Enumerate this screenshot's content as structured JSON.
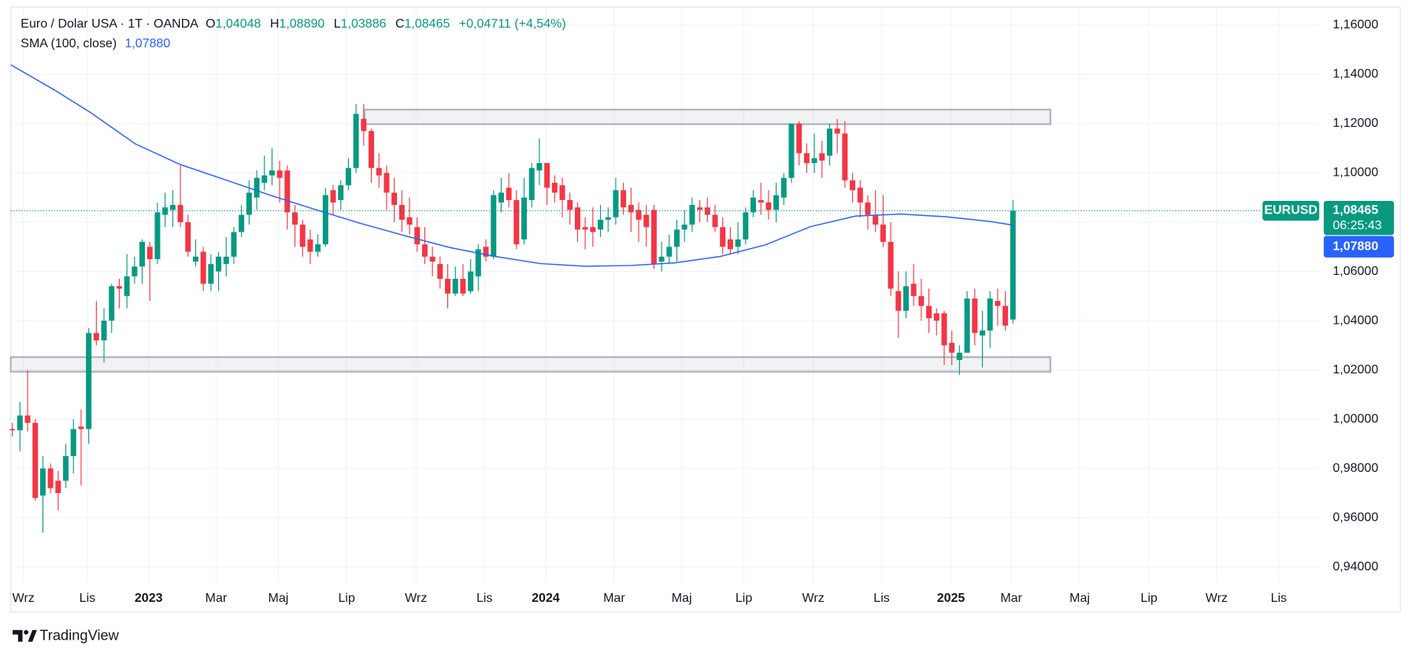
{
  "chart_data": {
    "type": "candlestick",
    "legend": {
      "symbol": "Euro / Dolar USA · 1T · OANDA",
      "ohlc": [
        {
          "key": "O",
          "label": "1,04048"
        },
        {
          "key": "H",
          "label": "1,08890"
        },
        {
          "key": "L",
          "label": "1,03886"
        },
        {
          "key": "C",
          "label": "1,08465"
        }
      ],
      "change": "+0,04711 (+4,54%)"
    },
    "up_color": "#089981",
    "down_color": "#f23645",
    "open": [
      0.996,
      0.9955,
      1.0015,
      0.9985,
      0.969,
      0.98,
      0.975,
      0.975,
      0.985,
      0.997,
      0.996,
      1.035,
      1.032,
      1.04,
      1.054,
      1.05,
      1.058,
      1.062,
      1.07,
      1.065,
      1.083,
      1.085,
      1.087,
      1.08,
      1.064,
      1.068,
      1.055,
      1.06,
      1.063,
      1.066,
      1.076,
      1.083,
      1.09,
      1.096,
      1.099,
      1.101,
      1.101,
      1.084,
      1.079,
      1.073,
      1.068,
      1.071,
      1.093,
      1.089,
      1.095,
      1.102,
      1.122,
      1.117,
      1.102,
      1.1,
      1.092,
      1.087,
      1.082,
      1.078,
      1.071,
      1.066,
      1.063,
      1.057,
      1.051,
      1.057,
      1.052,
      1.058,
      1.07,
      1.066,
      1.088,
      1.094,
      1.089,
      1.073,
      1.089,
      1.101,
      1.104,
      1.096,
      1.095,
      1.089,
      1.086,
      1.078,
      1.078,
      1.077,
      1.081,
      1.082,
      1.093,
      1.087,
      1.085,
      1.083,
      1.085,
      1.064,
      1.066,
      1.07,
      1.077,
      1.079,
      1.086,
      1.086,
      1.083,
      1.078,
      1.073,
      1.07,
      1.073,
      1.084,
      1.089,
      1.088,
      1.085,
      1.09,
      1.098,
      1.12,
      1.108,
      1.104,
      1.108,
      1.107,
      1.118,
      1.116,
      1.097,
      1.094,
      1.088,
      1.083,
      1.079,
      1.072,
      1.052,
      1.044,
      1.055,
      1.05,
      1.046,
      1.043,
      1.043,
      1.031,
      1.024,
      1.027,
      1.049,
      1.034,
      1.036,
      1.048,
      1.046,
      1.04048
    ],
    "high": [
      0.9985,
      1.007,
      1.02,
      1.0,
      0.985,
      0.982,
      0.979,
      0.99,
      1.0,
      1.004,
      1.037,
      1.048,
      1.045,
      1.055,
      1.057,
      1.067,
      1.066,
      1.073,
      1.072,
      1.088,
      1.092,
      1.093,
      1.103,
      1.083,
      1.073,
      1.07,
      1.067,
      1.068,
      1.074,
      1.078,
      1.087,
      1.097,
      1.101,
      1.107,
      1.11,
      1.105,
      1.103,
      1.087,
      1.081,
      1.077,
      1.075,
      1.094,
      1.095,
      1.097,
      1.106,
      1.128,
      1.128,
      1.118,
      1.108,
      1.103,
      1.098,
      1.093,
      1.09,
      1.082,
      1.078,
      1.07,
      1.066,
      1.063,
      1.062,
      1.063,
      1.065,
      1.071,
      1.073,
      1.093,
      1.098,
      1.1,
      1.093,
      1.098,
      1.104,
      1.114,
      1.104,
      1.099,
      1.098,
      1.092,
      1.088,
      1.082,
      1.086,
      1.087,
      1.086,
      1.098,
      1.096,
      1.094,
      1.088,
      1.087,
      1.087,
      1.072,
      1.075,
      1.081,
      1.085,
      1.09,
      1.089,
      1.09,
      1.087,
      1.082,
      1.078,
      1.08,
      1.086,
      1.093,
      1.096,
      1.093,
      1.096,
      1.1,
      1.12,
      1.121,
      1.112,
      1.116,
      1.113,
      1.12,
      1.122,
      1.121,
      1.1,
      1.097,
      1.091,
      1.093,
      1.091,
      1.08,
      1.06,
      1.06,
      1.063,
      1.057,
      1.053,
      1.045,
      1.044,
      1.036,
      1.03,
      1.052,
      1.053,
      1.044,
      1.052,
      1.053,
      1.052,
      1.0889
    ],
    "low": [
      0.993,
      0.987,
      0.995,
      0.967,
      0.954,
      0.97,
      0.963,
      0.972,
      0.978,
      0.973,
      0.99,
      1.03,
      1.023,
      1.035,
      1.045,
      1.045,
      1.055,
      1.055,
      1.048,
      1.063,
      1.078,
      1.078,
      1.078,
      1.066,
      1.062,
      1.052,
      1.052,
      1.052,
      1.058,
      1.063,
      1.074,
      1.079,
      1.085,
      1.093,
      1.095,
      1.088,
      1.077,
      1.07,
      1.066,
      1.063,
      1.066,
      1.07,
      1.083,
      1.085,
      1.093,
      1.1,
      1.111,
      1.096,
      1.094,
      1.085,
      1.08,
      1.076,
      1.075,
      1.068,
      1.063,
      1.058,
      1.053,
      1.045,
      1.05,
      1.05,
      1.051,
      1.052,
      1.064,
      1.065,
      1.084,
      1.086,
      1.069,
      1.071,
      1.086,
      1.095,
      1.087,
      1.088,
      1.082,
      1.079,
      1.072,
      1.069,
      1.07,
      1.074,
      1.076,
      1.079,
      1.083,
      1.076,
      1.072,
      1.07,
      1.061,
      1.06,
      1.063,
      1.064,
      1.072,
      1.076,
      1.08,
      1.08,
      1.076,
      1.067,
      1.067,
      1.067,
      1.071,
      1.082,
      1.083,
      1.081,
      1.08,
      1.087,
      1.096,
      1.103,
      1.1,
      1.1,
      1.098,
      1.103,
      1.108,
      1.094,
      1.088,
      1.082,
      1.077,
      1.076,
      1.07,
      1.05,
      1.033,
      1.041,
      1.046,
      1.04,
      1.035,
      1.034,
      1.022,
      1.022,
      1.018,
      1.027,
      1.03,
      1.021,
      1.029,
      1.038,
      1.036,
      1.03886
    ],
    "close": [
      0.9955,
      1.0015,
      0.9985,
      0.968,
      0.98,
      0.972,
      0.97,
      0.985,
      0.996,
      0.996,
      1.035,
      1.032,
      1.04,
      1.054,
      1.053,
      1.058,
      1.062,
      1.072,
      1.065,
      1.084,
      1.086,
      1.087,
      1.08,
      1.068,
      1.066,
      1.055,
      1.063,
      1.066,
      1.066,
      1.076,
      1.083,
      1.092,
      1.098,
      1.099,
      1.101,
      1.098,
      1.084,
      1.079,
      1.07,
      1.068,
      1.071,
      1.091,
      1.088,
      1.095,
      1.102,
      1.124,
      1.117,
      1.102,
      1.099,
      1.092,
      1.087,
      1.081,
      1.079,
      1.071,
      1.066,
      1.064,
      1.057,
      1.051,
      1.057,
      1.051,
      1.06,
      1.069,
      1.066,
      1.091,
      1.092,
      1.089,
      1.071,
      1.09,
      1.102,
      1.104,
      1.094,
      1.092,
      1.089,
      1.085,
      1.077,
      1.077,
      1.076,
      1.081,
      1.082,
      1.093,
      1.086,
      1.084,
      1.081,
      1.078,
      1.063,
      1.066,
      1.07,
      1.077,
      1.079,
      1.087,
      1.085,
      1.083,
      1.078,
      1.07,
      1.069,
      1.073,
      1.084,
      1.09,
      1.088,
      1.085,
      1.091,
      1.098,
      1.12,
      1.108,
      1.104,
      1.106,
      1.105,
      1.118,
      1.116,
      1.097,
      1.093,
      1.088,
      1.083,
      1.079,
      1.072,
      1.053,
      1.044,
      1.054,
      1.05,
      1.046,
      1.041,
      1.04,
      1.03,
      1.027,
      1.027,
      1.049,
      1.035,
      1.036,
      1.049,
      1.046,
      1.038,
      1.08465
    ],
    "sma": {
      "name": "SMA (100, close)",
      "color": "#2962ff",
      "x": [
        -0.2,
        5.5,
        10.2,
        16.1,
        22,
        27.9,
        33.8,
        39.7,
        45.5,
        51.4,
        57.3,
        63.2,
        69.1,
        75,
        80.9,
        86.8,
        92.7,
        98.6,
        104.5,
        110.4,
        116.3,
        122.2,
        128,
        131
      ],
      "values": [
        1.1439,
        1.1337,
        1.1246,
        1.1118,
        1.1034,
        1.0972,
        1.0909,
        1.0851,
        1.0796,
        1.0745,
        1.0697,
        1.0661,
        1.0632,
        1.0621,
        1.0624,
        1.0635,
        1.0661,
        1.0708,
        1.0782,
        1.0825,
        1.0833,
        1.0822,
        1.0803,
        1.0788
      ],
      "last_label": "1,07880"
    },
    "zones": [
      {
        "xlim": [
          46.1,
          135.9
        ],
        "ylim": [
          1.1198,
          1.1257
        ]
      },
      {
        "xlim": [
          -0.2,
          135.9
        ],
        "ylim": [
          1.0193,
          1.0252
        ]
      }
    ],
    "last_price": {
      "symbol": "EURUSD",
      "value": 1.08465,
      "label": "1,08465",
      "countdown": "06:25:43"
    },
    "xlim": [
      -0.2,
      171.1
    ],
    "xticks": [
      {
        "value": 1.45,
        "label": "Wrz"
      },
      {
        "value": 9.82,
        "label": "Lis"
      },
      {
        "value": 17.84,
        "label": "2023"
      },
      {
        "value": 26.68,
        "label": "Mar"
      },
      {
        "value": 34.82,
        "label": "Maj"
      },
      {
        "value": 43.77,
        "label": "Lip"
      },
      {
        "value": 52.85,
        "label": "Wrz"
      },
      {
        "value": 61.81,
        "label": "Lis"
      },
      {
        "value": 69.83,
        "label": "2024"
      },
      {
        "value": 78.79,
        "label": "Mar"
      },
      {
        "value": 87.63,
        "label": "Maj"
      },
      {
        "value": 95.77,
        "label": "Lip"
      },
      {
        "value": 104.85,
        "label": "Wrz"
      },
      {
        "value": 113.81,
        "label": "Lis"
      },
      {
        "value": 122.88,
        "label": "2025"
      },
      {
        "value": 130.78,
        "label": "Mar"
      },
      {
        "value": 139.74,
        "label": "Maj"
      },
      {
        "value": 148.82,
        "label": "Lip"
      },
      {
        "value": 157.66,
        "label": "Wrz"
      },
      {
        "value": 165.8,
        "label": "Lis"
      }
    ],
    "ylim": [
      0.9334,
      1.1673
    ],
    "yticks": [
      {
        "value": 0.94,
        "label": "0,94000"
      },
      {
        "value": 0.96,
        "label": "0,96000"
      },
      {
        "value": 0.98,
        "label": "0,98000"
      },
      {
        "value": 1.0,
        "label": "1,00000"
      },
      {
        "value": 1.02,
        "label": "1,02000"
      },
      {
        "value": 1.04,
        "label": "1,04000"
      },
      {
        "value": 1.06,
        "label": "1,06000"
      },
      {
        "value": 1.08,
        "label": "1,08000"
      },
      {
        "value": 1.1,
        "label": "1,10000"
      },
      {
        "value": 1.12,
        "label": "1,12000"
      },
      {
        "value": 1.14,
        "label": "1,14000"
      },
      {
        "value": 1.16,
        "label": "1,16000"
      }
    ],
    "grid": true,
    "brand": "TradingView"
  }
}
